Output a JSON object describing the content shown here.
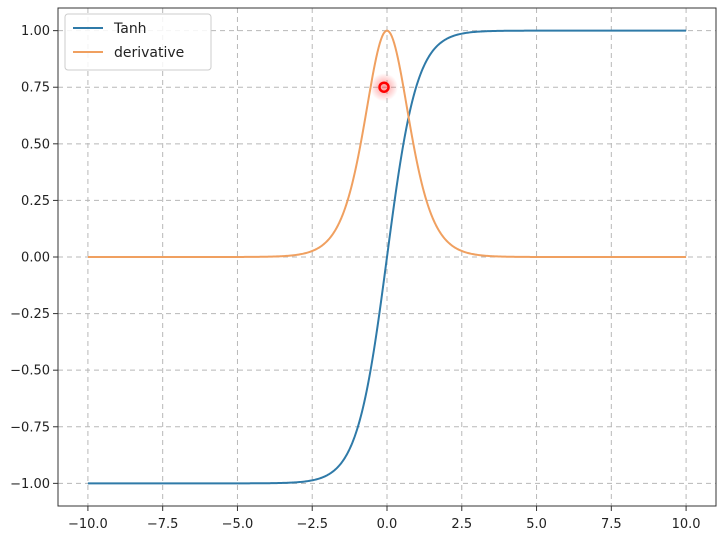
{
  "chart_data": {
    "type": "line",
    "title": "",
    "xlabel": "",
    "ylabel": "",
    "xlim": [
      -11.0,
      11.0
    ],
    "ylim": [
      -1.1,
      1.1
    ],
    "grid": true,
    "grid_style": "dashed",
    "legend_position": "top-left",
    "x_ticks": [
      -10.0,
      -7.5,
      -5.0,
      -2.5,
      0.0,
      2.5,
      5.0,
      7.5,
      10.0
    ],
    "x_tick_labels": [
      "−10.0",
      "−7.5",
      "−5.0",
      "−2.5",
      "0.0",
      "2.5",
      "5.0",
      "7.5",
      "10.0"
    ],
    "y_ticks": [
      1.0,
      0.75,
      0.5,
      0.25,
      0.0,
      -0.25,
      -0.5,
      -0.75,
      -1.0
    ],
    "y_tick_labels": [
      "1.00",
      "0.75",
      "0.50",
      "0.25",
      "0.00",
      "−0.25",
      "−0.50",
      "−0.75",
      "−1.00"
    ],
    "series": [
      {
        "name": "Tanh",
        "color": "#2f7aa8",
        "x": [
          -10,
          -5,
          -4,
          -3,
          -2.5,
          -2,
          -1.5,
          -1,
          -0.5,
          0,
          0.5,
          1,
          1.5,
          2,
          2.5,
          3,
          4,
          5,
          10
        ],
        "y": [
          -1.0,
          -0.9999,
          -0.9993,
          -0.9951,
          -0.9866,
          -0.964,
          -0.9051,
          -0.7616,
          -0.4621,
          0.0,
          0.4621,
          0.7616,
          0.9051,
          0.964,
          0.9866,
          0.9951,
          0.9993,
          0.9999,
          1.0
        ]
      },
      {
        "name": "derivative",
        "color": "#f0a060",
        "x": [
          -10,
          -5,
          -4,
          -3,
          -2.5,
          -2,
          -1.5,
          -1,
          -0.5,
          0,
          0.5,
          1,
          1.5,
          2,
          2.5,
          3,
          4,
          5,
          10
        ],
        "y": [
          0.0,
          0.0002,
          0.0013,
          0.0099,
          0.0266,
          0.0707,
          0.1807,
          0.42,
          0.7864,
          1.0,
          0.7864,
          0.42,
          0.1807,
          0.0707,
          0.0266,
          0.0099,
          0.0013,
          0.0002,
          0.0
        ]
      }
    ],
    "annotation_marker": {
      "x": -0.1,
      "y": 0.75,
      "color": "#ff0000"
    }
  }
}
